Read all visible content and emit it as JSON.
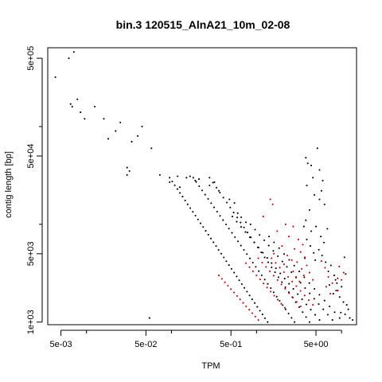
{
  "chart_data": {
    "type": "scatter",
    "title": "bin.3 120515_AlnA21_10m_02-08",
    "xlabel": "TPM",
    "ylabel": "contig length [bp]",
    "x_scale": "log",
    "y_scale": "log",
    "xlim": [
      0.0035,
      15
    ],
    "ylim": [
      940,
      640000
    ],
    "x_ticks": [
      0.005,
      0.05,
      0.5,
      5
    ],
    "x_tick_labels": [
      "5e-03",
      "5e-02",
      "5e-01",
      "5e+00"
    ],
    "x_minor_ticks": [
      0.01,
      0.1,
      1,
      10
    ],
    "y_ticks": [
      1000,
      5000,
      50000,
      500000
    ],
    "y_tick_labels": [
      "1e+03",
      "5e+03",
      "5e+04",
      "5e+05"
    ],
    "y_minor_ticks": [
      10000,
      100000
    ],
    "grid": false,
    "legend": "none",
    "colors": {
      "series_black": "#000000",
      "series_red": "#cc0000"
    },
    "series": [
      {
        "color": "#000000",
        "points": [
          [
            0.0043,
            320000
          ],
          [
            0.0062,
            500000
          ],
          [
            0.0071,
            580000
          ],
          [
            0.0065,
            170000
          ],
          [
            0.0068,
            160000
          ],
          [
            0.0078,
            190000
          ],
          [
            0.0095,
            120000
          ],
          [
            0.0085,
            140000
          ],
          [
            0.0125,
            160000
          ],
          [
            0.018,
            75000
          ],
          [
            0.016,
            120000
          ],
          [
            0.025,
            110000
          ],
          [
            0.022,
            90000
          ],
          [
            0.034,
            70000
          ],
          [
            0.04,
            80000
          ],
          [
            0.045,
            100000
          ],
          [
            0.03,
            38000
          ],
          [
            0.032,
            35000
          ],
          [
            0.058,
            60000
          ],
          [
            0.073,
            32000
          ],
          [
            0.118,
            31000
          ],
          [
            0.15,
            30000
          ],
          [
            0.165,
            31000
          ],
          [
            0.19,
            28000
          ],
          [
            0.21,
            29000
          ],
          [
            0.28,
            25000
          ],
          [
            0.32,
            27000
          ],
          [
            0.36,
            22000
          ],
          [
            0.48,
            18000
          ],
          [
            0.55,
            16500
          ],
          [
            0.6,
            13000
          ],
          [
            0.66,
            11800
          ],
          [
            0.75,
            10500
          ],
          [
            0.03,
            32000
          ],
          [
            0.095,
            27000
          ],
          [
            0.125,
            24000
          ],
          [
            0.055,
            1100
          ],
          [
            3.8,
            48000
          ],
          [
            4.0,
            42000
          ],
          [
            4.4,
            40000
          ],
          [
            5.2,
            60000
          ],
          [
            4.6,
            30000
          ],
          [
            3.9,
            25000
          ],
          [
            4.8,
            20000
          ],
          [
            5.5,
            18000
          ],
          [
            4.2,
            14000
          ],
          [
            3.8,
            11000
          ],
          [
            5.0,
            9500
          ],
          [
            4.4,
            8500
          ],
          [
            5.7,
            7500
          ],
          [
            3.9,
            7000
          ],
          [
            6.2,
            6500
          ],
          [
            4.3,
            6000
          ],
          [
            5.4,
            5500
          ],
          [
            4.7,
            5100
          ],
          [
            5.9,
            4800
          ],
          [
            3.7,
            4500
          ],
          [
            4.9,
            4300
          ],
          [
            6.5,
            4100
          ],
          [
            5.5,
            36000
          ],
          [
            6.0,
            28000
          ],
          [
            5.8,
            22000
          ],
          [
            6.3,
            16000
          ],
          [
            3.6,
            9500
          ],
          [
            6.8,
            9000
          ],
          [
            7.5,
            3800
          ],
          [
            7.0,
            3300
          ],
          [
            8.2,
            3000
          ],
          [
            8.5,
            2700
          ],
          [
            7.2,
            2400
          ],
          [
            10.0,
            2300
          ],
          [
            9.0,
            2100
          ],
          [
            8.0,
            1950
          ],
          [
            9.5,
            1800
          ],
          [
            10.5,
            1600
          ],
          [
            11.5,
            1500
          ],
          [
            12.0,
            1350
          ],
          [
            11.0,
            1200
          ],
          [
            12.5,
            1100
          ],
          [
            13.5,
            1050
          ],
          [
            9.8,
            1250
          ],
          [
            10.8,
            4600
          ],
          [
            11.2,
            3100
          ],
          [
            8.8,
            2500
          ]
        ],
        "bands": [
          {
            "x_from": 0.095,
            "x_to": 1.35,
            "y_from": 30000,
            "y_to": 1000,
            "step": 0.03
          },
          {
            "x_from": 0.18,
            "x_to": 2.8,
            "y_from": 30000,
            "y_to": 1000,
            "step": 0.035
          },
          {
            "x_from": 0.28,
            "x_to": 4.2,
            "y_from": 30000,
            "y_to": 1000,
            "step": 0.04
          },
          {
            "x_from": 0.52,
            "x_to": 5.5,
            "y_from": 12000,
            "y_to": 1050,
            "step": 0.05
          },
          {
            "x_from": 0.85,
            "x_to": 7.8,
            "y_from": 10000,
            "y_to": 1050,
            "step": 0.055
          },
          {
            "x_from": 1.4,
            "x_to": 9.5,
            "y_from": 7500,
            "y_to": 1100,
            "step": 0.06
          }
        ]
      },
      {
        "color": "#cc0000",
        "points": [
          [
            1.45,
            18000
          ],
          [
            1.55,
            16000
          ],
          [
            1.2,
            12000
          ],
          [
            2.2,
            10000
          ],
          [
            2.7,
            9500
          ],
          [
            1.75,
            8500
          ],
          [
            2.4,
            7500
          ],
          [
            3.1,
            7000
          ],
          [
            3.5,
            6200
          ],
          [
            2.0,
            6000
          ],
          [
            2.8,
            5600
          ],
          [
            3.3,
            5200
          ],
          [
            1.6,
            5000
          ],
          [
            2.3,
            4800
          ],
          [
            3.7,
            4600
          ],
          [
            2.6,
            4300
          ],
          [
            3.0,
            4100
          ],
          [
            2.1,
            3900
          ],
          [
            3.9,
            3800
          ],
          [
            3.4,
            3500
          ],
          [
            2.7,
            3300
          ],
          [
            4.2,
            3200
          ],
          [
            3.6,
            3000
          ],
          [
            2.9,
            2900
          ],
          [
            4.6,
            2700
          ],
          [
            3.2,
            2600
          ],
          [
            5.8,
            4200
          ],
          [
            6.4,
            3600
          ],
          [
            7.0,
            2900
          ],
          [
            7.8,
            2500
          ],
          [
            6.6,
            2300
          ],
          [
            8.6,
            2100
          ],
          [
            7.4,
            1950
          ],
          [
            9.4,
            3700
          ],
          [
            10.6,
            3200
          ],
          [
            10.0,
            2700
          ],
          [
            9.0,
            2800
          ]
        ],
        "bands": [
          {
            "x_from": 0.36,
            "x_to": 1.05,
            "y_from": 3000,
            "y_to": 1050,
            "step": 0.035
          },
          {
            "x_from": 0.75,
            "x_to": 2.15,
            "y_from": 4000,
            "y_to": 1400,
            "step": 0.04
          },
          {
            "x_from": 1.05,
            "x_to": 3.3,
            "y_from": 4500,
            "y_to": 1450,
            "step": 0.045
          },
          {
            "x_from": 1.5,
            "x_to": 4.6,
            "y_from": 4500,
            "y_to": 1500,
            "step": 0.05
          }
        ]
      }
    ]
  }
}
